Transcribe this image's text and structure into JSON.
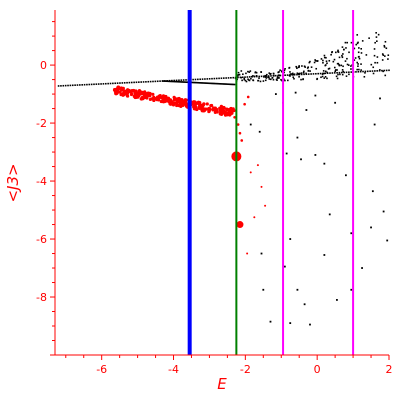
{
  "chart_data": {
    "type": "scatter",
    "title": "",
    "xlabel": "E",
    "ylabel": "<J3>",
    "xlim": [
      -7.3,
      2.0
    ],
    "ylim": [
      -10.0,
      1.9
    ],
    "xticks": [
      -6,
      -4,
      -2,
      0,
      2
    ],
    "yticks": [
      0,
      -2,
      -4,
      -6,
      -8
    ],
    "grid": false,
    "colors": {
      "axes": "#ff0000",
      "black_points": "#000000",
      "red_points": "#ff0000",
      "blue_line": "#0000ff",
      "green_line": "#008000",
      "magenta_line": "#ff00ff"
    },
    "vlines": [
      {
        "x": -3.55,
        "color": "#0000ff",
        "width": 4
      },
      {
        "x": -2.25,
        "color": "#008000",
        "width": 2
      },
      {
        "x": -0.95,
        "color": "#ff00ff",
        "width": 2
      },
      {
        "x": 1.0,
        "color": "#ff00ff",
        "width": 2
      }
    ],
    "black_band": {
      "x_start": -7.2,
      "x_end": 2.0,
      "y_start": -0.72,
      "y_end": -0.18,
      "upper_envelope": [
        [
          -1.5,
          -0.3
        ],
        [
          -0.5,
          0.0
        ],
        [
          0.5,
          0.5
        ],
        [
          1.0,
          1.0
        ],
        [
          1.5,
          1.2
        ],
        [
          2.0,
          1.1
        ]
      ]
    },
    "black_points": [
      [
        -1.15,
        -1.0
      ],
      [
        -0.95,
        -1.3
      ],
      [
        -0.6,
        -0.95
      ],
      [
        -0.3,
        -1.55
      ],
      [
        -0.05,
        -1.05
      ],
      [
        0.5,
        -1.3
      ],
      [
        1.6,
        -2.05
      ],
      [
        1.75,
        -1.15
      ],
      [
        -0.55,
        -2.5
      ],
      [
        -0.85,
        -3.05
      ],
      [
        -0.45,
        -3.25
      ],
      [
        -0.05,
        -3.1
      ],
      [
        0.2,
        -3.4
      ],
      [
        0.8,
        -3.8
      ],
      [
        1.55,
        -4.35
      ],
      [
        1.85,
        -5.05
      ],
      [
        0.35,
        -5.15
      ],
      [
        1.5,
        -5.6
      ],
      [
        0.95,
        -5.8
      ],
      [
        -0.75,
        -6.0
      ],
      [
        1.95,
        -6.05
      ],
      [
        0.2,
        -6.55
      ],
      [
        -1.55,
        -6.5
      ],
      [
        -0.9,
        -6.95
      ],
      [
        1.25,
        -7.0
      ],
      [
        -1.5,
        -7.75
      ],
      [
        -0.55,
        -7.75
      ],
      [
        0.95,
        -7.75
      ],
      [
        -0.35,
        -8.25
      ],
      [
        0.55,
        -8.1
      ],
      [
        -1.3,
        -8.85
      ],
      [
        -0.75,
        -8.9
      ],
      [
        -0.2,
        -8.95
      ],
      [
        -1.85,
        -2.05
      ],
      [
        -1.6,
        -2.3
      ]
    ],
    "red_band": {
      "x_start": -5.65,
      "x_end": -2.3,
      "y_start": -0.85,
      "y_end": -1.65
    },
    "red_trail_points": [
      [
        -2.3,
        -1.8
      ],
      [
        -2.2,
        -2.05
      ],
      [
        -2.15,
        -2.35
      ],
      [
        -2.1,
        -2.6
      ],
      [
        -2.02,
        -1.35
      ],
      [
        -1.92,
        -1.1
      ]
    ],
    "red_large_points": [
      {
        "x": -2.25,
        "y": -3.15,
        "r": 5
      },
      {
        "x": -2.15,
        "y": -5.5,
        "r": 3.5
      }
    ],
    "red_small_points": [
      [
        -1.75,
        -5.25
      ],
      [
        -1.45,
        -4.85
      ],
      [
        -1.85,
        -3.7
      ],
      [
        -1.55,
        -4.2
      ],
      [
        -1.65,
        -3.45
      ],
      [
        -1.95,
        -6.5
      ]
    ]
  }
}
